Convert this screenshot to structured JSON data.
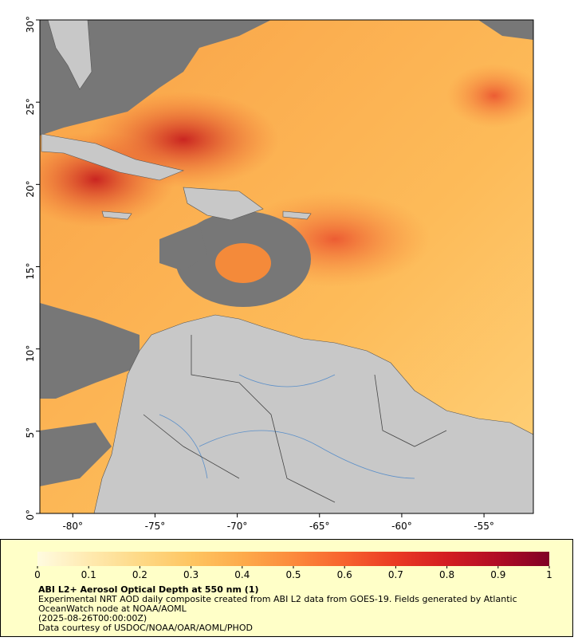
{
  "map": {
    "xlim": [
      -82,
      -52
    ],
    "ylim": [
      0,
      30
    ],
    "xticks": [
      {
        "value": -80,
        "label": "-80°"
      },
      {
        "value": -75,
        "label": "-75°"
      },
      {
        "value": -70,
        "label": "-70°"
      },
      {
        "value": -65,
        "label": "-65°"
      },
      {
        "value": -60,
        "label": "-60°"
      },
      {
        "value": -55,
        "label": "-55°"
      }
    ],
    "yticks": [
      {
        "value": 0,
        "label": "0°"
      },
      {
        "value": 5,
        "label": "5°"
      },
      {
        "value": 10,
        "label": "10°"
      },
      {
        "value": 15,
        "label": "15°"
      },
      {
        "value": 20,
        "label": "20°"
      },
      {
        "value": 25,
        "label": "25°"
      },
      {
        "value": 30,
        "label": "30°"
      }
    ]
  },
  "colorbar": {
    "lim": [
      0,
      1
    ],
    "ticks": [
      0,
      0.1,
      0.2,
      0.3,
      0.4,
      0.5,
      0.6,
      0.7,
      0.8,
      0.9,
      1
    ],
    "colors": [
      "#fffbe0",
      "#ffeab0",
      "#fed986",
      "#fec561",
      "#fdab4b",
      "#fc8a3c",
      "#f7622e",
      "#ea3a24",
      "#d31d22",
      "#b00c25",
      "#800026"
    ]
  },
  "caption": {
    "title": "ABI L2+ Aerosol Optical Depth at 550 nm (1)",
    "lines": [
      "Experimental NRT AOD daily composite created from ABI L2 data from GOES-19. Fields generated by Atlantic",
      "OceanWatch node at NOAA/AOML",
      "(2025-08-26T00:00:00Z)",
      "Data courtesy of USDOC/NOAA/OAR/AOML/PHOD"
    ]
  }
}
